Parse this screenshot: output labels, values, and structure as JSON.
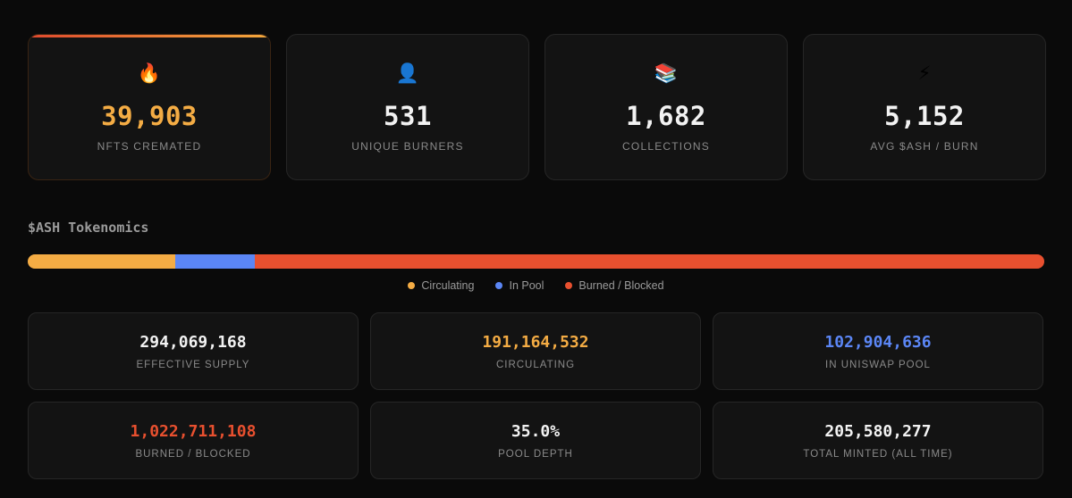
{
  "stats": [
    {
      "icon": "🔥",
      "icon_name": "fire-icon",
      "value": "39,903",
      "label": "NFTs Cremated",
      "accent": "#f4ac44"
    },
    {
      "icon": "👤",
      "icon_name": "user-icon",
      "value": "531",
      "label": "Unique Burners"
    },
    {
      "icon": "📚",
      "icon_name": "books-icon",
      "value": "1,682",
      "label": "Collections"
    },
    {
      "icon": "⚡",
      "icon_name": "lightning-icon",
      "value": "5,152",
      "label": "Avg $ASH / Burn"
    }
  ],
  "tokenomics": {
    "title": "$ASH Tokenomics",
    "distribution": [
      {
        "name": "Circulating",
        "share": 14.5,
        "color": "#f4ac44"
      },
      {
        "name": "In Pool",
        "share": 7.8,
        "color": "#5b86f5"
      },
      {
        "name": "Burned / Blocked",
        "share": 77.7,
        "color": "#e8502f"
      }
    ],
    "legend": [
      "Circulating",
      "In Pool",
      "Burned / Blocked"
    ]
  },
  "metrics": [
    {
      "value": "294,069,168",
      "label": "Effective Supply",
      "color": "#f2f2f2"
    },
    {
      "value": "191,164,532",
      "label": "Circulating",
      "color": "#f4ac44"
    },
    {
      "value": "102,904,636",
      "label": "In Uniswap Pool",
      "color": "#5b86f5"
    },
    {
      "value": "1,022,711,108",
      "label": "Burned / Blocked",
      "color": "#e8502f"
    },
    {
      "value": "35.0%",
      "label": "Pool Depth",
      "color": "#f2f2f2"
    },
    {
      "value": "205,580,277",
      "label": "Total Minted (All Time)",
      "color": "#f2f2f2"
    }
  ],
  "colors": {
    "circulating": "#f4ac44",
    "pool": "#5b86f5",
    "burned": "#e8502f"
  }
}
